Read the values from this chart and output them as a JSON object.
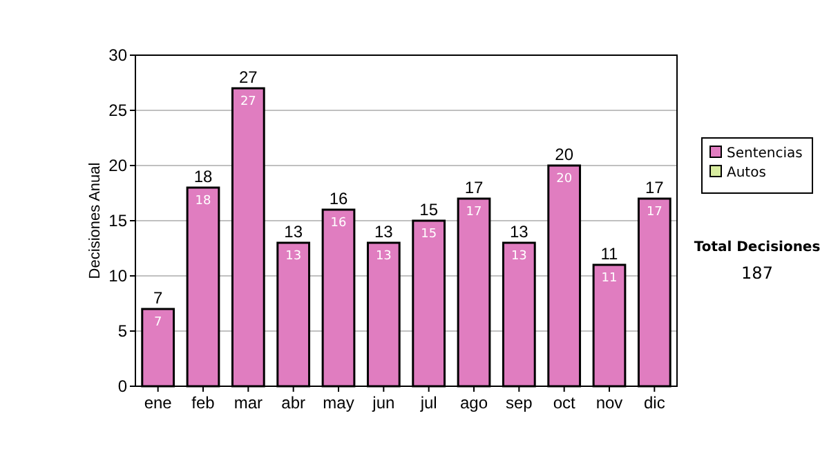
{
  "chart_data": {
    "type": "bar",
    "ylabel": "Decisiones Anual",
    "categories": [
      "ene",
      "feb",
      "mar",
      "abr",
      "may",
      "jun",
      "jul",
      "ago",
      "sep",
      "oct",
      "nov",
      "dic"
    ],
    "series": [
      {
        "name": "Sentencias",
        "color": "#e07dc0",
        "values": [
          7,
          18,
          27,
          13,
          16,
          13,
          15,
          17,
          13,
          20,
          11,
          17
        ]
      },
      {
        "name": "Autos",
        "color": "#d8eca0",
        "values": [
          null,
          null,
          null,
          null,
          null,
          null,
          null,
          null,
          null,
          null,
          null,
          null
        ]
      }
    ],
    "data_labels": true,
    "totals": [
      "7",
      "18",
      "27",
      "13",
      "16",
      "13",
      "15",
      "17",
      "13",
      "20",
      "11",
      "17"
    ],
    "ylim": [
      0,
      30
    ],
    "yticks": [
      0,
      5,
      10,
      15,
      20,
      25,
      30
    ],
    "grid": "y",
    "legend": "right",
    "annotations": [
      "Total Decisiones",
      "187"
    ]
  }
}
